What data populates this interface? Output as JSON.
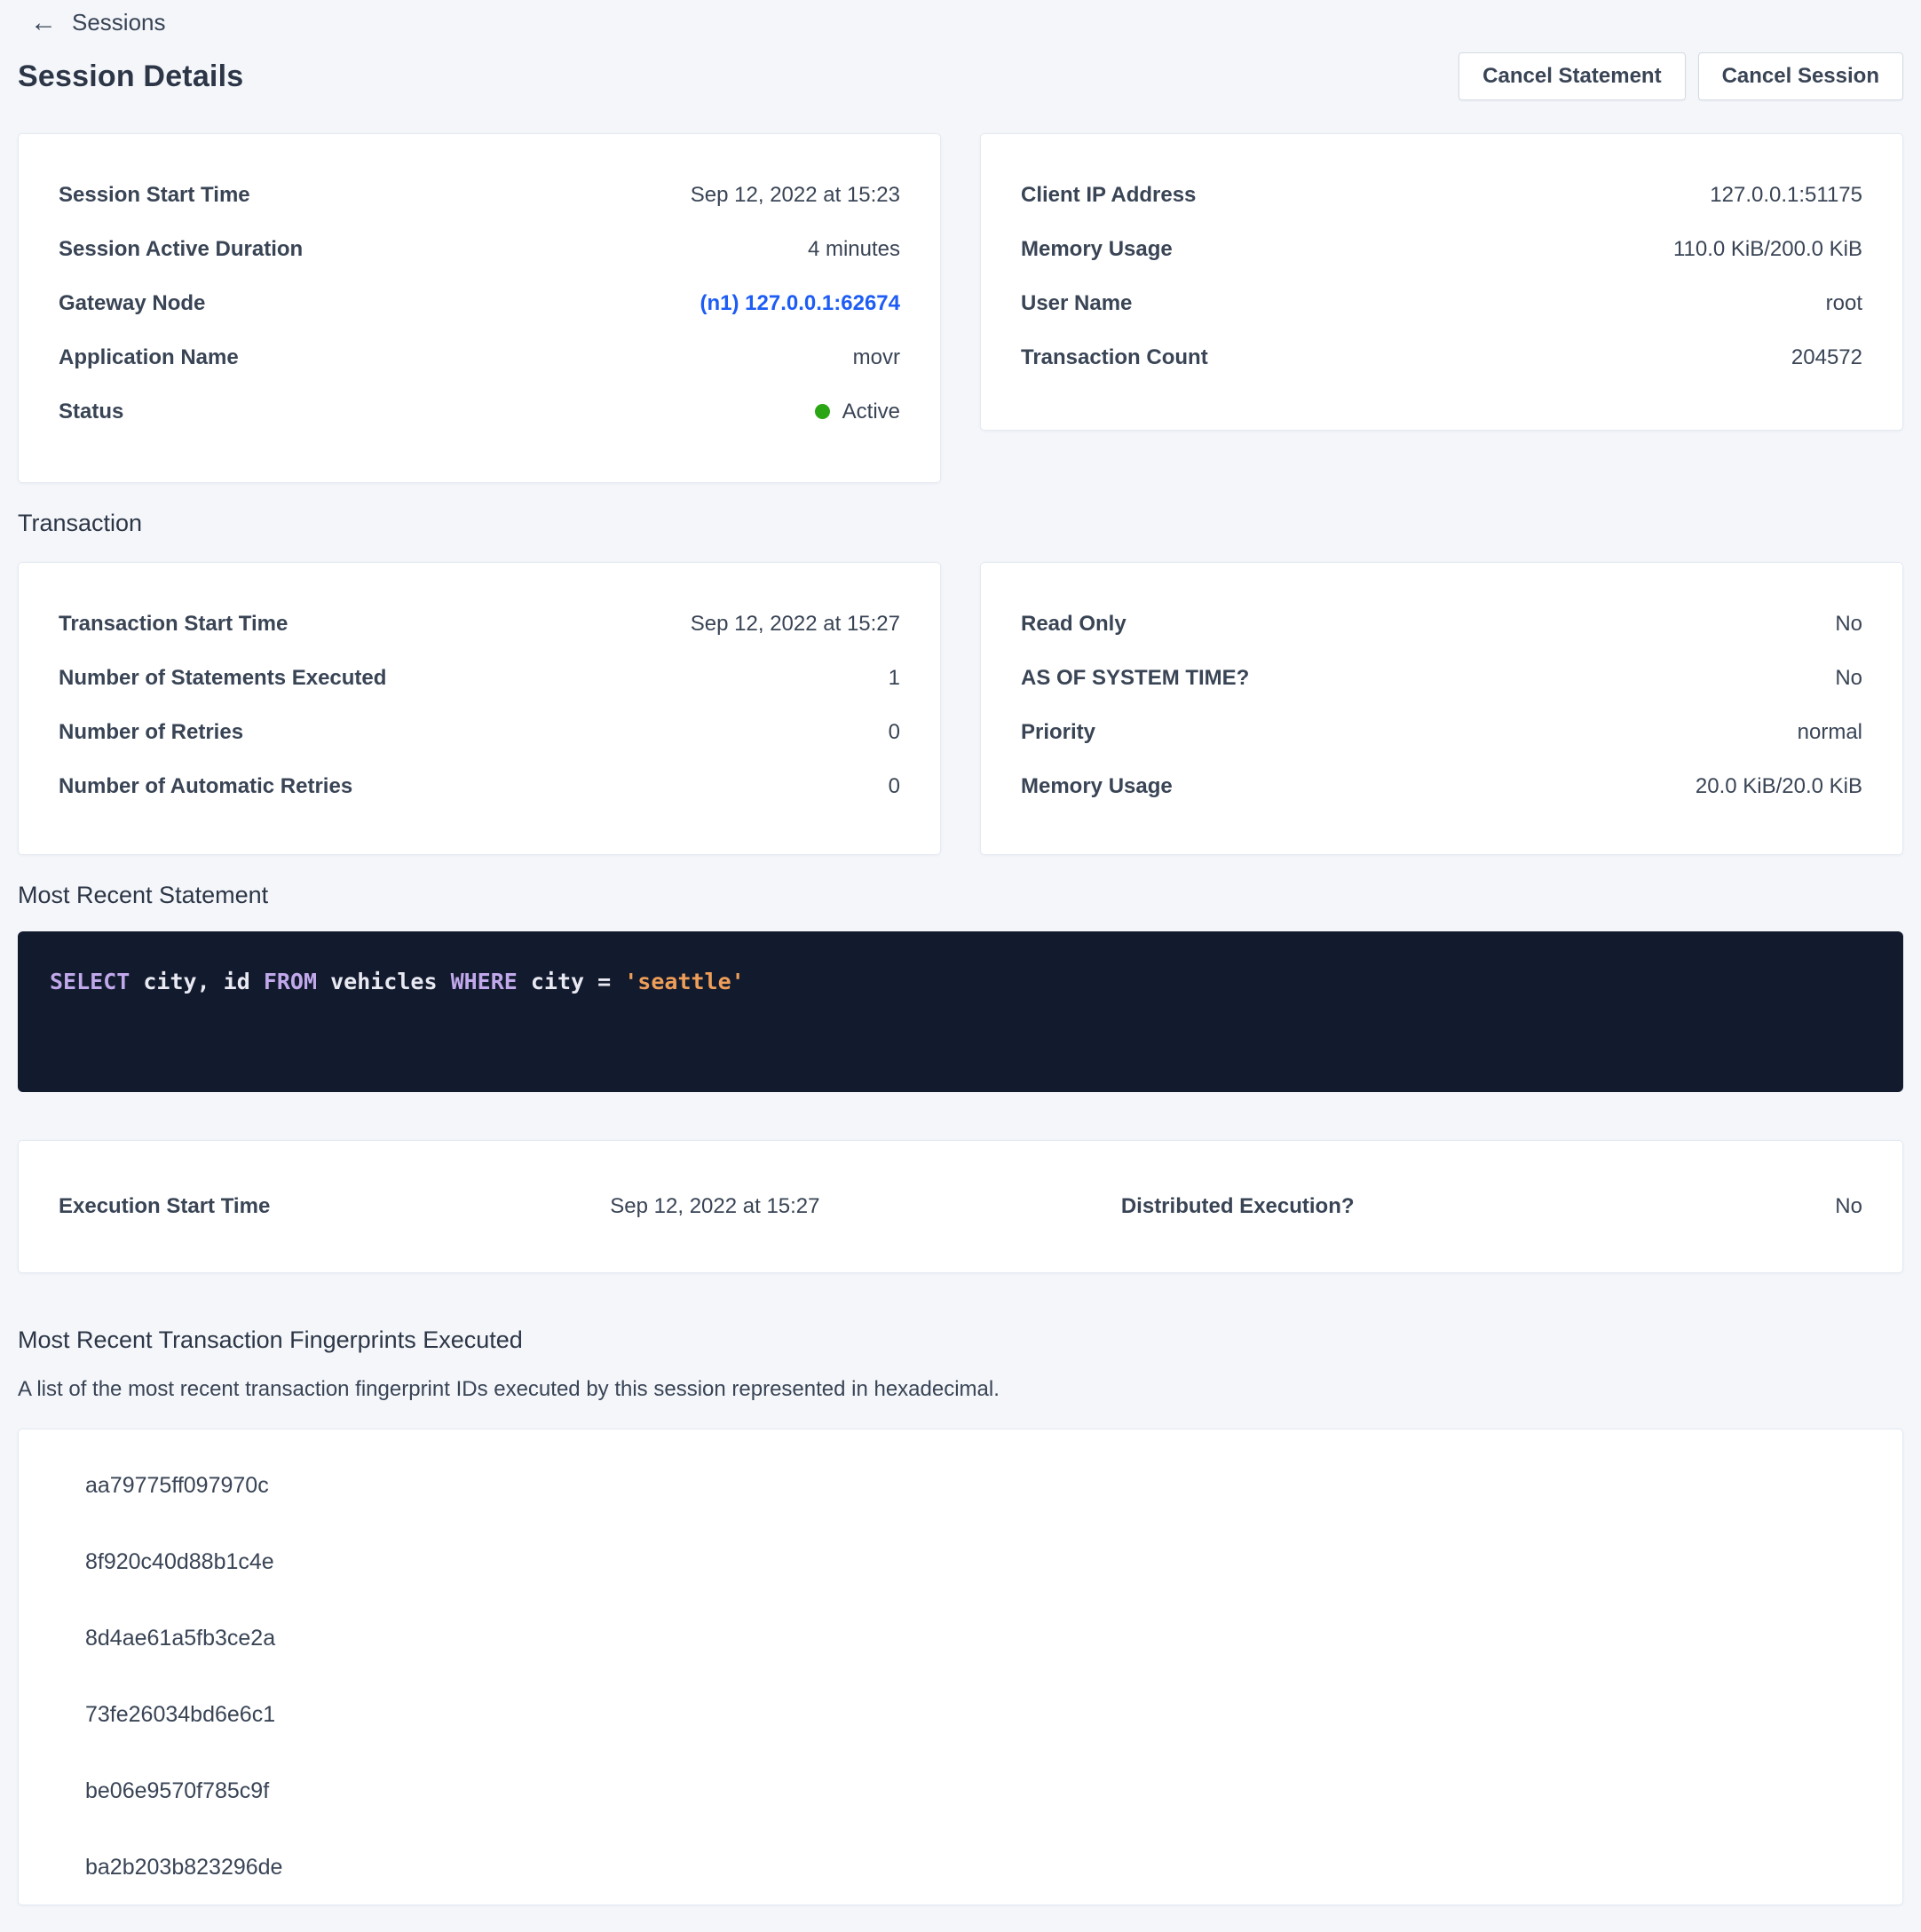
{
  "header": {
    "back_label": "Sessions",
    "title": "Session Details",
    "cancel_statement_label": "Cancel Statement",
    "cancel_session_label": "Cancel Session"
  },
  "session": {
    "left": [
      {
        "label": "Session Start Time",
        "value": "Sep 12, 2022 at 15:23"
      },
      {
        "label": "Session Active Duration",
        "value": "4 minutes"
      },
      {
        "label": "Gateway Node",
        "value": "(n1) 127.0.0.1:62674"
      },
      {
        "label": "Application Name",
        "value": "movr"
      },
      {
        "label": "Status",
        "value": "Active"
      }
    ],
    "right": [
      {
        "label": "Client IP Address",
        "value": "127.0.0.1:51175"
      },
      {
        "label": "Memory Usage",
        "value": "110.0 KiB/200.0 KiB"
      },
      {
        "label": "User Name",
        "value": "root"
      },
      {
        "label": "Transaction Count",
        "value": "204572"
      }
    ]
  },
  "transaction": {
    "heading": "Transaction",
    "left": [
      {
        "label": "Transaction Start Time",
        "value": "Sep 12, 2022 at 15:27"
      },
      {
        "label": "Number of Statements Executed",
        "value": "1"
      },
      {
        "label": "Number of Retries",
        "value": "0"
      },
      {
        "label": "Number of Automatic Retries",
        "value": "0"
      }
    ],
    "right": [
      {
        "label": "Read Only",
        "value": "No"
      },
      {
        "label": "AS OF SYSTEM TIME?",
        "value": "No"
      },
      {
        "label": "Priority",
        "value": "normal"
      },
      {
        "label": "Memory Usage",
        "value": "20.0 KiB/20.0 KiB"
      }
    ]
  },
  "statement": {
    "heading": "Most Recent Statement",
    "sql": {
      "kw_select": "SELECT",
      "columns": " city, id ",
      "kw_from": "FROM",
      "table": " vehicles ",
      "kw_where": "WHERE",
      "condition": " city = ",
      "string_literal": "'seattle'"
    }
  },
  "execution": {
    "start_time_label": "Execution Start Time",
    "start_time_value": "Sep 12, 2022 at 15:27",
    "distributed_label": "Distributed Execution?",
    "distributed_value": "No"
  },
  "fingerprints": {
    "heading": "Most Recent Transaction Fingerprints Executed",
    "description": "A list of the most recent transaction fingerprint IDs executed by this session represented in hexadecimal.",
    "items": [
      "aa79775ff097970c",
      "8f920c40d88b1c4e",
      "8d4ae61a5fb3ce2a",
      "73fe26034bd6e6c1",
      "be06e9570f785c9f",
      "ba2b203b823296de"
    ]
  },
  "colors": {
    "link": "#1d5cf5",
    "status_active": "#2aa614",
    "code_background": "#121a2e",
    "code_keyword": "#c0a8ea",
    "code_string": "#ee9e58",
    "code_text": "#e9e9f2"
  }
}
